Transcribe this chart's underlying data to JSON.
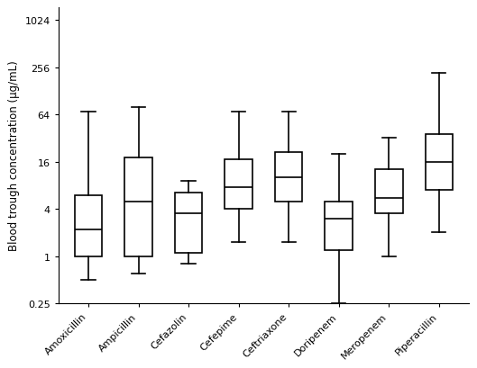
{
  "categories": [
    "Amoxicillin",
    "Ampicillin",
    "Cefazolin",
    "Cefepime",
    "Ceftriaxone",
    "Doripenem",
    "Meropenem",
    "Piperacillin"
  ],
  "boxes": [
    {
      "whislo": 0.5,
      "q1": 1.0,
      "med": 2.2,
      "q3": 6.0,
      "whishi": 70.0
    },
    {
      "whislo": 0.6,
      "q1": 1.0,
      "med": 5.0,
      "q3": 18.0,
      "whishi": 80.0
    },
    {
      "whislo": 0.8,
      "q1": 1.1,
      "med": 3.5,
      "q3": 6.5,
      "whishi": 9.0
    },
    {
      "whislo": 1.5,
      "q1": 4.0,
      "med": 7.5,
      "q3": 17.0,
      "whishi": 70.0
    },
    {
      "whislo": 1.5,
      "q1": 5.0,
      "med": 10.0,
      "q3": 21.0,
      "whishi": 70.0
    },
    {
      "whislo": 0.25,
      "q1": 1.2,
      "med": 3.0,
      "q3": 5.0,
      "whishi": 20.0
    },
    {
      "whislo": 1.0,
      "q1": 3.5,
      "med": 5.5,
      "q3": 13.0,
      "whishi": 32.0
    },
    {
      "whislo": 2.0,
      "q1": 7.0,
      "med": 16.0,
      "q3": 36.0,
      "whishi": 220.0
    }
  ],
  "ylabel": "Blood trough concentration (µg/mL)",
  "yticks": [
    0.25,
    1,
    4,
    16,
    64,
    256,
    1024
  ],
  "ytick_labels": [
    "0.25",
    "1",
    "4",
    "16",
    "64",
    "256",
    "1024"
  ],
  "ymin": 0.25,
  "ymax": 1500,
  "background_color": "#ffffff",
  "box_color": "#ffffff",
  "box_edge_color": "#000000",
  "median_color": "#000000",
  "whisker_color": "#000000",
  "cap_color": "#000000",
  "linewidth": 1.2,
  "box_width": 0.55,
  "figwidth": 5.29,
  "figheight": 4.1,
  "dpi": 100
}
